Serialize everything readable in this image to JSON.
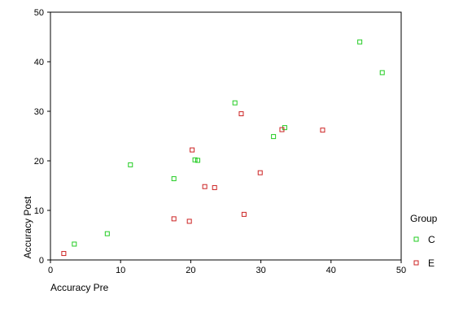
{
  "chart_data": {
    "type": "scatter",
    "xlabel": "Accuracy Pre",
    "ylabel": "Accuracy Post",
    "xlim": [
      0,
      50
    ],
    "ylim": [
      0,
      50
    ],
    "xticks": [
      0,
      10,
      20,
      30,
      40,
      50
    ],
    "yticks": [
      0,
      10,
      20,
      30,
      40,
      50
    ],
    "grid": false,
    "legend": {
      "title": "Group",
      "placement": "right"
    },
    "series": [
      {
        "name": "C",
        "color": "#22cc22",
        "marker": "hollow-square",
        "points": [
          {
            "x": 3.4,
            "y": 3.2
          },
          {
            "x": 8.1,
            "y": 5.3
          },
          {
            "x": 11.4,
            "y": 19.2
          },
          {
            "x": 17.6,
            "y": 16.4
          },
          {
            "x": 20.6,
            "y": 20.2
          },
          {
            "x": 21.0,
            "y": 20.1
          },
          {
            "x": 26.3,
            "y": 31.7
          },
          {
            "x": 31.8,
            "y": 24.9
          },
          {
            "x": 33.4,
            "y": 26.7
          },
          {
            "x": 44.1,
            "y": 44.0
          },
          {
            "x": 47.3,
            "y": 37.8
          }
        ]
      },
      {
        "name": "E",
        "color": "#cc2222",
        "marker": "hollow-square",
        "points": [
          {
            "x": 1.9,
            "y": 1.3
          },
          {
            "x": 17.6,
            "y": 8.3
          },
          {
            "x": 19.8,
            "y": 7.8
          },
          {
            "x": 20.2,
            "y": 22.2
          },
          {
            "x": 22.0,
            "y": 14.8
          },
          {
            "x": 23.4,
            "y": 14.6
          },
          {
            "x": 27.2,
            "y": 29.5
          },
          {
            "x": 27.6,
            "y": 9.2
          },
          {
            "x": 29.9,
            "y": 17.6
          },
          {
            "x": 33.0,
            "y": 26.3
          },
          {
            "x": 38.8,
            "y": 26.2
          }
        ]
      }
    ]
  }
}
